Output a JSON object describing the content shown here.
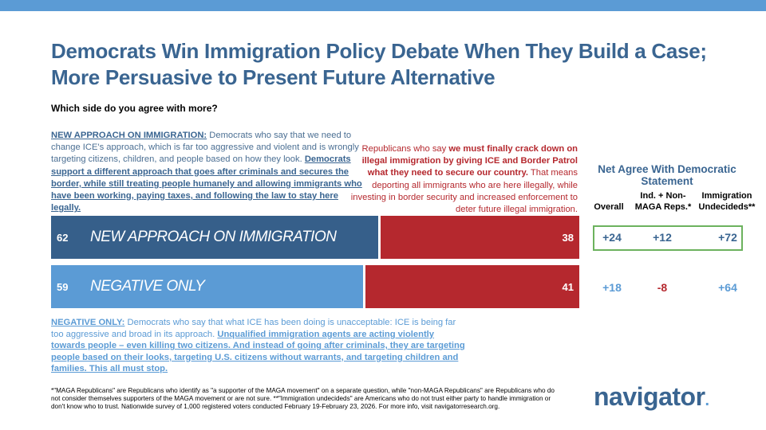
{
  "header": {
    "title": "Democrats Win Immigration Policy Debate When They Build a Case; More Persuasive to Present Future Alternative",
    "question": "Which side do you agree with more?"
  },
  "descriptions": {
    "new_approach": {
      "lead": "NEW APPROACH ON IMMIGRATION:",
      "text": " Democrats who say that we need to change ICE's approach, which is far too aggressive and violent and is wrongly targeting citizens, children, and people based on how they look. ",
      "emph": "Democrats support a different approach that goes after criminals and secures the border, while still treating people humanely and allowing immigrants who have been working, paying taxes, and following the law to stay here legally."
    },
    "republican": {
      "pre": "Republicans who say ",
      "emph": "we must finally crack down on illegal immigration by giving ICE and Border Patrol what they need to secure our country.",
      "post": " That means deporting all immigrants who are here illegally, while investing in border security and increased enforcement to deter future illegal immigration."
    },
    "negative_only": {
      "lead": "NEGATIVE ONLY:",
      "text": " Democrats who say that what ICE has been doing is unacceptable: ICE is being far too aggressive and broad in its approach. ",
      "emph": "Unqualified immigration agents are acting violently towards people – even killing two citizens. And instead of going after criminals, they are targeting people based on their looks, targeting U.S. citizens without warrants, and targeting children and families. This all must stop."
    }
  },
  "chart_data": {
    "type": "bar",
    "orientation": "horizontal-stacked",
    "categories": [
      "NEW APPROACH ON IMMIGRATION",
      "NEGATIVE ONLY"
    ],
    "series": [
      {
        "values": [
          62,
          59
        ],
        "colors": [
          "#365f8a",
          "#5b9bd5"
        ]
      },
      {
        "values": [
          38,
          41
        ],
        "colors": [
          "#b5282e",
          "#b5282e"
        ]
      }
    ],
    "xlim": [
      0,
      100
    ]
  },
  "net_agree": {
    "title": "Net Agree With Democratic Statement",
    "columns": [
      "Overall",
      "Ind. + Non-MAGA Reps.*",
      "Immigration Undecideds**"
    ],
    "rows": [
      {
        "values": [
          "+24",
          "+12",
          "+72"
        ],
        "highlighted": true
      },
      {
        "values": [
          "+18",
          "-8",
          "+64"
        ],
        "highlighted": false
      }
    ],
    "colors": {
      "positive_row1": "#3a6591",
      "positive_row2": "#5b9bd5",
      "negative": "#b5282e",
      "highlight_border": "#6cb25e"
    }
  },
  "footnote": "*\"MAGA Republicans\" are Republicans who identify as \"a supporter of the MAGA movement\" on a separate question, while \"non-MAGA Republicans\" are Republicans who do not consider themselves supporters of the MAGA movement or are not sure. **\"Immigration undecideds\" are Americans who do not trust either party to handle immigration or don't know who to trust. Nationwide survey of 1,000 registered voters conducted February 19-February 23, 2026. For more info, visit navigatorresearch.org.",
  "logo": {
    "text": "navigator",
    "dot": "."
  }
}
